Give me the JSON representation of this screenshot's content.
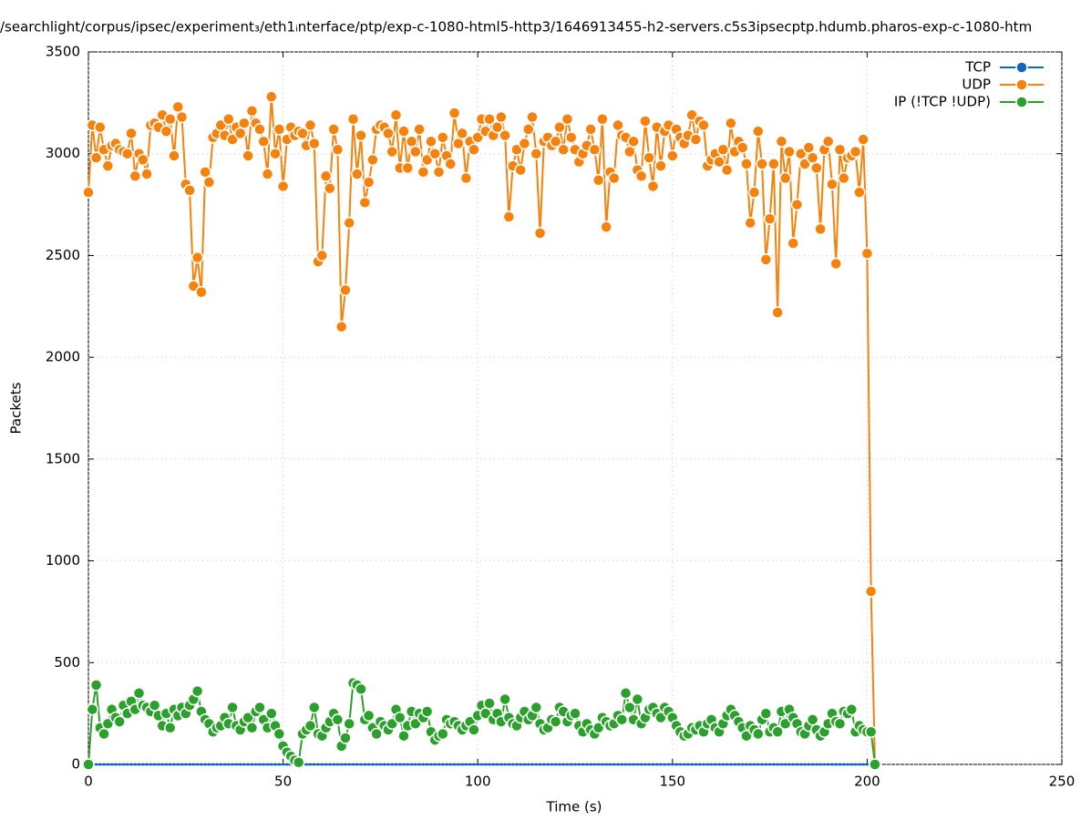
{
  "chart_data": {
    "type": "line",
    "title": "/searchlight/corpus/ipsec/experiment₃/eth1ᵢnterface/ptp/exp-c-1080-html5-http3/1646913455-h2-servers.c5s3ipsecptp.hdumb.pharos-exp-c-1080-htm",
    "x_label": "Time (s)",
    "y_label": "Packets",
    "xlim": [
      0,
      250
    ],
    "xticks": [
      0,
      50,
      100,
      150,
      200,
      250
    ],
    "ylim": [
      0,
      3500
    ],
    "yticks": [
      0,
      500,
      1000,
      1500,
      2000,
      2500,
      3000,
      3500
    ],
    "grid": true,
    "legend": "top-right",
    "x": [
      0,
      1,
      2,
      3,
      4,
      5,
      6,
      7,
      8,
      9,
      10,
      11,
      12,
      13,
      14,
      15,
      16,
      17,
      18,
      19,
      20,
      21,
      22,
      23,
      24,
      25,
      26,
      27,
      28,
      29,
      30,
      31,
      32,
      33,
      34,
      35,
      36,
      37,
      38,
      39,
      40,
      41,
      42,
      43,
      44,
      45,
      46,
      47,
      48,
      49,
      50,
      51,
      52,
      53,
      54,
      55,
      56,
      57,
      58,
      59,
      60,
      61,
      62,
      63,
      64,
      65,
      66,
      67,
      68,
      69,
      70,
      71,
      72,
      73,
      74,
      75,
      76,
      77,
      78,
      79,
      80,
      81,
      82,
      83,
      84,
      85,
      86,
      87,
      88,
      89,
      90,
      91,
      92,
      93,
      94,
      95,
      96,
      97,
      98,
      99,
      100,
      101,
      102,
      103,
      104,
      105,
      106,
      107,
      108,
      109,
      110,
      111,
      112,
      113,
      114,
      115,
      116,
      117,
      118,
      119,
      120,
      121,
      122,
      123,
      124,
      125,
      126,
      127,
      128,
      129,
      130,
      131,
      132,
      133,
      134,
      135,
      136,
      137,
      138,
      139,
      140,
      141,
      142,
      143,
      144,
      145,
      146,
      147,
      148,
      149,
      150,
      151,
      152,
      153,
      154,
      155,
      156,
      157,
      158,
      159,
      160,
      161,
      162,
      163,
      164,
      165,
      166,
      167,
      168,
      169,
      170,
      171,
      172,
      173,
      174,
      175,
      176,
      177,
      178,
      179,
      180,
      181,
      182,
      183,
      184,
      185,
      186,
      187,
      188,
      189,
      190,
      191,
      192,
      193,
      194,
      195,
      196,
      197,
      198,
      199,
      200,
      201,
      202
    ],
    "series": [
      {
        "name": "TCP",
        "color": "#1565c0",
        "values": [
          0,
          0,
          0,
          0,
          0,
          0,
          0,
          0,
          0,
          0,
          0,
          0,
          0,
          0,
          0,
          0,
          0,
          0,
          0,
          0,
          0,
          0,
          0,
          0,
          0,
          0,
          0,
          0,
          0,
          0,
          0,
          0,
          0,
          0,
          0,
          0,
          0,
          0,
          0,
          0,
          0,
          0,
          0,
          0,
          0,
          0,
          0,
          0,
          0,
          0,
          0,
          0,
          0,
          0,
          0,
          0,
          0,
          0,
          0,
          0,
          0,
          0,
          0,
          0,
          0,
          0,
          0,
          0,
          0,
          0,
          0,
          0,
          0,
          0,
          0,
          0,
          0,
          0,
          0,
          0,
          0,
          0,
          0,
          0,
          0,
          0,
          0,
          0,
          0,
          0,
          0,
          0,
          0,
          0,
          0,
          0,
          0,
          0,
          0,
          0,
          0,
          0,
          0,
          0,
          0,
          0,
          0,
          0,
          0,
          0,
          0,
          0,
          0,
          0,
          0,
          0,
          0,
          0,
          0,
          0,
          0,
          0,
          0,
          0,
          0,
          0,
          0,
          0,
          0,
          0,
          0,
          0,
          0,
          0,
          0,
          0,
          0,
          0,
          0,
          0,
          0,
          0,
          0,
          0,
          0,
          0,
          0,
          0,
          0,
          0,
          0,
          0,
          0,
          0,
          0,
          0,
          0,
          0,
          0,
          0,
          0,
          0,
          0,
          0,
          0,
          0,
          0,
          0,
          0,
          0,
          0,
          0,
          0,
          0,
          0,
          0,
          0,
          0,
          0,
          0,
          0,
          0,
          0,
          0,
          0,
          0,
          0,
          0,
          0,
          0,
          0,
          0,
          0,
          0,
          0,
          0,
          0,
          0,
          0,
          0,
          0,
          0,
          0
        ]
      },
      {
        "name": "UDP",
        "color": "#f5820d",
        "values": [
          2810,
          3140,
          2980,
          3130,
          3020,
          2940,
          3040,
          3050,
          3020,
          3010,
          3000,
          3100,
          2890,
          3000,
          2970,
          2900,
          3140,
          3150,
          3130,
          3190,
          3110,
          3170,
          2990,
          3230,
          3180,
          2850,
          2820,
          2350,
          2490,
          2320,
          2910,
          2860,
          3080,
          3100,
          3140,
          3090,
          3170,
          3070,
          3130,
          3100,
          3150,
          2990,
          3210,
          3150,
          3120,
          3060,
          2900,
          3280,
          3000,
          3120,
          2840,
          3070,
          3130,
          3090,
          3110,
          3100,
          3040,
          3140,
          3050,
          2470,
          2500,
          2890,
          2830,
          3120,
          3020,
          2150,
          2330,
          2660,
          3170,
          2900,
          3090,
          2760,
          2860,
          2970,
          3120,
          3140,
          3130,
          3100,
          3010,
          3190,
          2930,
          3110,
          2930,
          3060,
          3010,
          3120,
          2910,
          2970,
          3060,
          3000,
          2910,
          3080,
          2990,
          2950,
          3200,
          3050,
          3100,
          2880,
          3060,
          3020,
          3080,
          3170,
          3110,
          3170,
          3090,
          3130,
          3180,
          3090,
          2690,
          2940,
          3020,
          2920,
          3050,
          3120,
          3180,
          3000,
          2610,
          3060,
          3080,
          3040,
          3060,
          3130,
          3020,
          3170,
          3080,
          3020,
          2960,
          3000,
          3040,
          3120,
          3020,
          2870,
          3170,
          2640,
          2910,
          2880,
          3140,
          3090,
          3080,
          3010,
          3060,
          2920,
          2890,
          3160,
          2980,
          2840,
          3130,
          2940,
          3110,
          3140,
          2990,
          3120,
          3080,
          3050,
          3090,
          3190,
          3070,
          3160,
          3140,
          2940,
          2970,
          3000,
          2960,
          3020,
          2920,
          3150,
          3010,
          3060,
          3030,
          2950,
          2660,
          2810,
          3110,
          2950,
          2480,
          2680,
          2950,
          2220,
          3060,
          2880,
          3010,
          2560,
          2750,
          3000,
          2950,
          3030,
          2980,
          2930,
          2630,
          3020,
          3060,
          2850,
          2460,
          3020,
          2880,
          2980,
          2990,
          3010,
          2810,
          3070,
          2510,
          850,
          0
        ]
      },
      {
        "name": "IP (!TCP  !UDP)",
        "color": "#2ca02c",
        "values": [
          0,
          270,
          390,
          180,
          150,
          200,
          270,
          230,
          210,
          290,
          250,
          310,
          270,
          350,
          290,
          280,
          260,
          290,
          240,
          190,
          250,
          180,
          270,
          240,
          280,
          250,
          290,
          320,
          360,
          260,
          220,
          200,
          160,
          180,
          190,
          230,
          200,
          280,
          190,
          170,
          210,
          230,
          180,
          260,
          280,
          220,
          180,
          250,
          190,
          150,
          90,
          60,
          40,
          20,
          10,
          150,
          170,
          190,
          280,
          150,
          140,
          180,
          210,
          250,
          220,
          90,
          130,
          200,
          400,
          390,
          370,
          220,
          240,
          180,
          150,
          210,
          190,
          170,
          200,
          270,
          230,
          140,
          190,
          260,
          200,
          250,
          230,
          260,
          160,
          120,
          140,
          150,
          220,
          200,
          210,
          190,
          170,
          190,
          210,
          170,
          240,
          290,
          250,
          300,
          220,
          250,
          210,
          320,
          230,
          200,
          190,
          230,
          260,
          220,
          240,
          280,
          200,
          170,
          180,
          220,
          210,
          280,
          260,
          210,
          240,
          250,
          190,
          160,
          200,
          170,
          150,
          180,
          230,
          210,
          190,
          200,
          240,
          220,
          350,
          280,
          220,
          320,
          200,
          230,
          270,
          280,
          250,
          230,
          280,
          260,
          230,
          190,
          160,
          140,
          150,
          180,
          170,
          190,
          160,
          200,
          220,
          180,
          160,
          200,
          240,
          270,
          240,
          210,
          180,
          140,
          190,
          170,
          150,
          220,
          250,
          160,
          180,
          160,
          260,
          200,
          270,
          230,
          200,
          160,
          150,
          190,
          220,
          170,
          140,
          160,
          200,
          250,
          210,
          200,
          260,
          250,
          270,
          160,
          190,
          170,
          160,
          160,
          0
        ]
      }
    ]
  }
}
